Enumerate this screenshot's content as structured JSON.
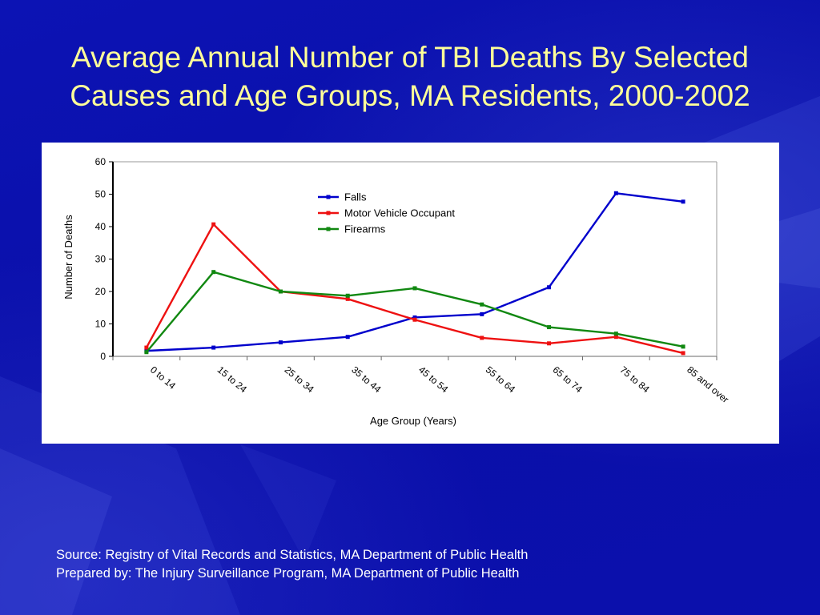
{
  "slide": {
    "title_line1": "Average Annual Number of TBI Deaths By Selected",
    "title_line2": "Causes and Age Groups, MA Residents, 2000-2002",
    "source_line": "Source: Registry of Vital Records and Statistics, MA Department of Public Health",
    "prepared_line": "Prepared by: The Injury Surveillance Program, MA Department of Public Health"
  },
  "colors": {
    "background": "#0a0fa8",
    "title": "#ffff99",
    "panel": "#ffffff"
  },
  "chart_data": {
    "type": "line",
    "title": "",
    "xlabel": "Age Group (Years)",
    "ylabel": "Number of Deaths",
    "categories": [
      "0 to 14",
      "15 to 24",
      "25 to 34",
      "35 to 44",
      "45 to 54",
      "55 to 64",
      "65 to 74",
      "75 to 84",
      "85 and over"
    ],
    "ylim": [
      0,
      60
    ],
    "yticks": [
      0,
      10,
      20,
      30,
      40,
      50,
      60
    ],
    "grid": false,
    "legend_position": "top-center",
    "series": [
      {
        "name": "Falls",
        "color": "#0000cc",
        "values": [
          1.7,
          2.7,
          4.3,
          6.0,
          12.0,
          13.0,
          21.3,
          50.3,
          47.7
        ]
      },
      {
        "name": "Motor Vehicle Occupant",
        "color": "#ee1111",
        "values": [
          2.7,
          40.7,
          20.0,
          17.7,
          11.3,
          5.7,
          4.0,
          6.0,
          1.0
        ]
      },
      {
        "name": "Firearms",
        "color": "#118811",
        "values": [
          1.3,
          26.0,
          20.0,
          18.7,
          21.0,
          16.0,
          9.0,
          7.0,
          3.0
        ]
      }
    ]
  }
}
